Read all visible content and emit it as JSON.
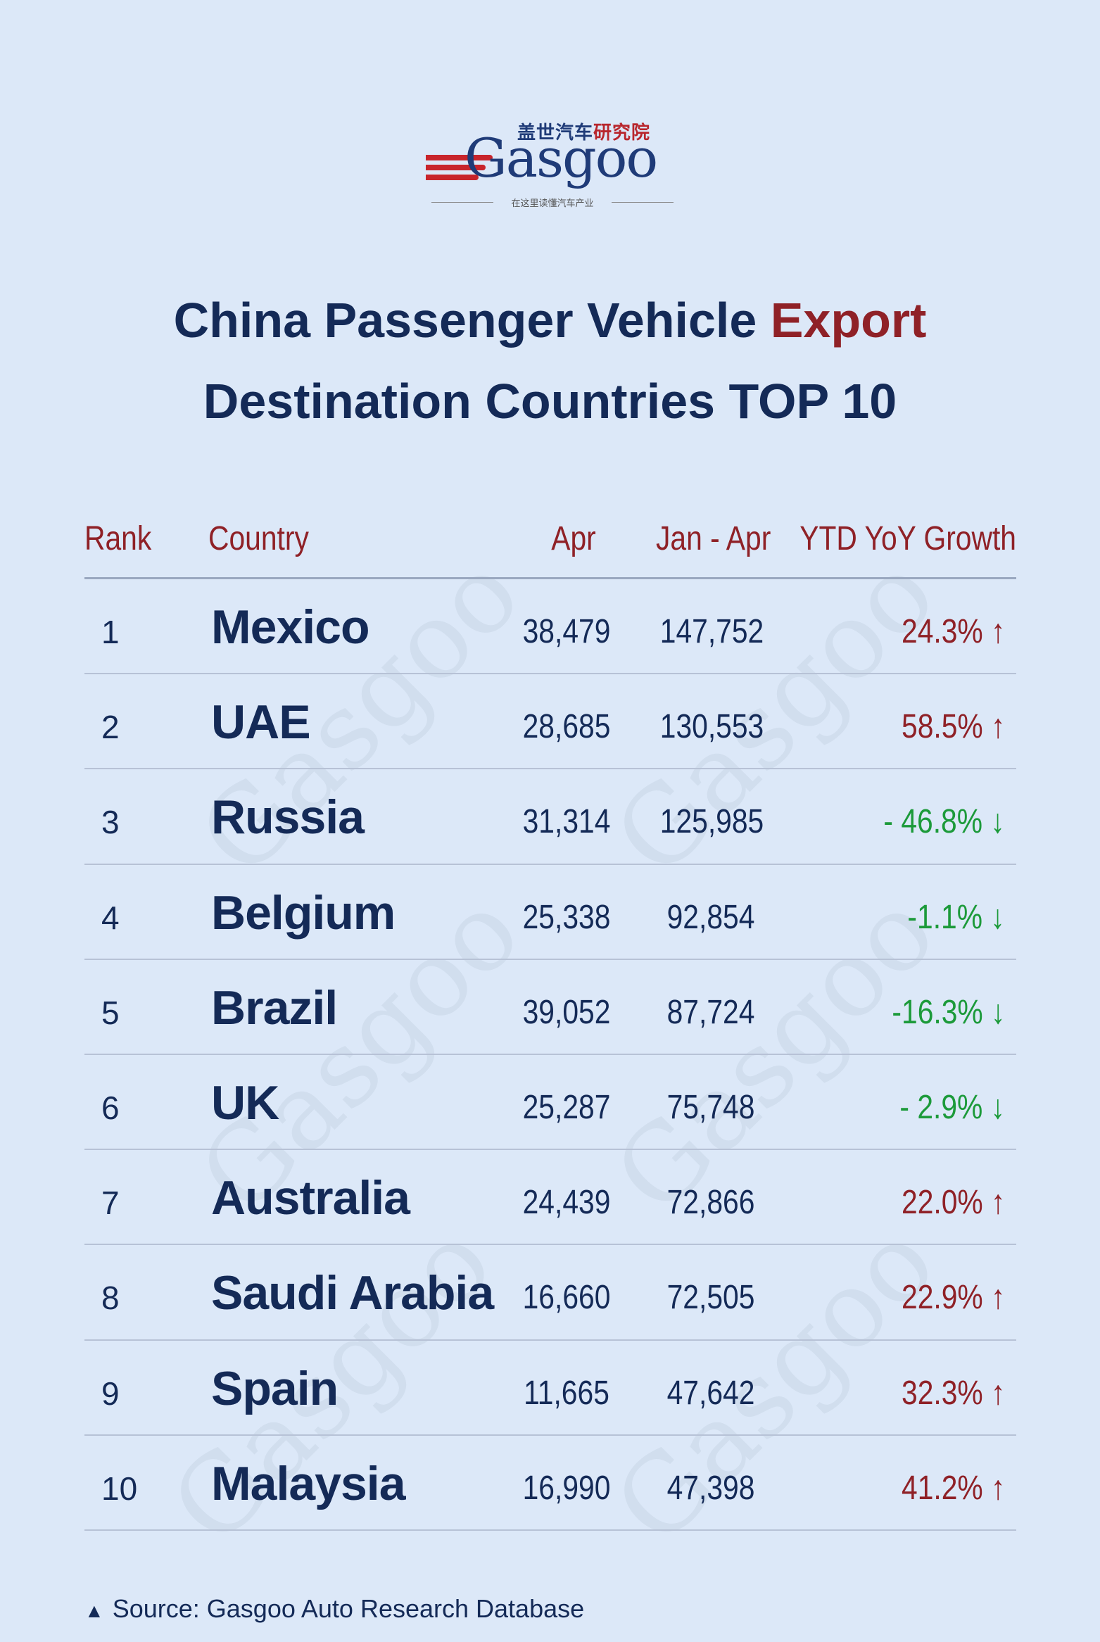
{
  "logo": {
    "cn_blue": "盖世汽车",
    "cn_red": "研究院",
    "wordmark": "Gasgoo",
    "tagline": "在这里读懂汽车产业"
  },
  "title": {
    "line1_prefix": "China Passenger Vehicle ",
    "line1_highlight": "Export",
    "line2": "Destination Countries TOP 10"
  },
  "table": {
    "headers": {
      "rank": "Rank",
      "country": "Country",
      "apr": "Apr",
      "ytd": "Jan - Apr",
      "growth": "YTD YoY Growth"
    },
    "rows": [
      {
        "rank": "1",
        "country": "Mexico",
        "apr": "38,479",
        "ytd": "147,752",
        "growth": "24.3% ↑",
        "direction": "up"
      },
      {
        "rank": "2",
        "country": "UAE",
        "apr": "28,685",
        "ytd": "130,553",
        "growth": "58.5% ↑",
        "direction": "up"
      },
      {
        "rank": "3",
        "country": "Russia",
        "apr": "31,314",
        "ytd": "125,985",
        "growth": "- 46.8% ↓",
        "direction": "down"
      },
      {
        "rank": "4",
        "country": "Belgium",
        "apr": "25,338",
        "ytd": "92,854",
        "growth": "-1.1% ↓",
        "direction": "down"
      },
      {
        "rank": "5",
        "country": "Brazil",
        "apr": "39,052",
        "ytd": "87,724",
        "growth": "-16.3% ↓",
        "direction": "down"
      },
      {
        "rank": "6",
        "country": "UK",
        "apr": "25,287",
        "ytd": "75,748",
        "growth": "- 2.9% ↓",
        "direction": "down"
      },
      {
        "rank": "7",
        "country": "Australia",
        "apr": "24,439",
        "ytd": "72,866",
        "growth": "22.0% ↑",
        "direction": "up"
      },
      {
        "rank": "8",
        "country": "Saudi Arabia",
        "apr": "16,660",
        "ytd": "72,505",
        "growth": "22.9% ↑",
        "direction": "up"
      },
      {
        "rank": "9",
        "country": "Spain",
        "apr": "11,665",
        "ytd": "47,642",
        "growth": "32.3% ↑",
        "direction": "up"
      },
      {
        "rank": "10",
        "country": "Malaysia",
        "apr": "16,990",
        "ytd": "47,398",
        "growth": "41.2% ↑",
        "direction": "up"
      }
    ]
  },
  "source": "Source: Gasgoo Auto Research Database",
  "colors": {
    "background": "#dce8f8",
    "navy": "#142a57",
    "red": "#8f2127",
    "green": "#1c9a3a"
  }
}
